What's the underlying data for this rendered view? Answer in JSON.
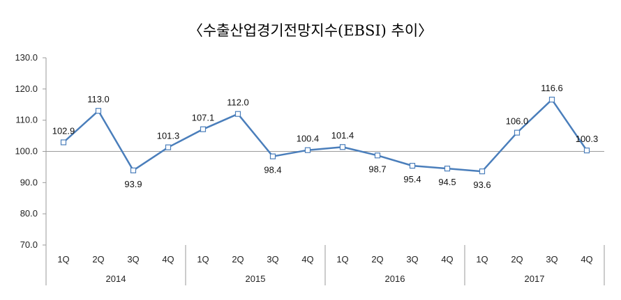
{
  "chart_data": {
    "type": "line",
    "title": "〈수출산업경기전망지수(EBSI)  추이〉",
    "xlabel": "",
    "ylabel": "",
    "ylim": [
      70,
      130
    ],
    "yticks": [
      "70.0",
      "80.0",
      "90.0",
      "100.0",
      "110.0",
      "120.0",
      "130.0"
    ],
    "grid": false,
    "reference_line": 100,
    "categories": [
      "1Q",
      "2Q",
      "3Q",
      "4Q",
      "1Q",
      "2Q",
      "3Q",
      "4Q",
      "1Q",
      "2Q",
      "3Q",
      "4Q",
      "1Q",
      "2Q",
      "3Q",
      "4Q"
    ],
    "groups": [
      "2014",
      "2015",
      "2016",
      "2017"
    ],
    "series": [
      {
        "name": "EBSI",
        "color": "#4a7ebb",
        "values": [
          102.9,
          113.0,
          93.9,
          101.3,
          107.1,
          112.0,
          98.4,
          100.4,
          101.4,
          98.7,
          95.4,
          94.5,
          93.6,
          106.0,
          116.6,
          100.3
        ],
        "labels": [
          "102.9",
          "113.0",
          "93.9",
          "101.3",
          "107.1",
          "112.0",
          "98.4",
          "100.4",
          "101.4",
          "98.7",
          "95.4",
          "94.5",
          "93.6",
          "106.0",
          "116.6",
          "100.3"
        ],
        "label_side": [
          "above",
          "above",
          "below",
          "above",
          "above",
          "above",
          "below",
          "above",
          "above",
          "below",
          "below",
          "below",
          "below",
          "above",
          "above",
          "above"
        ]
      }
    ]
  }
}
